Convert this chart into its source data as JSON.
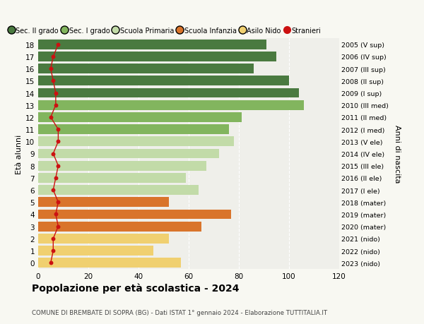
{
  "ages": [
    18,
    17,
    16,
    15,
    14,
    13,
    12,
    11,
    10,
    9,
    8,
    7,
    6,
    5,
    4,
    3,
    2,
    1,
    0
  ],
  "years": [
    "2005 (V sup)",
    "2006 (IV sup)",
    "2007 (III sup)",
    "2008 (II sup)",
    "2009 (I sup)",
    "2010 (III med)",
    "2011 (II med)",
    "2012 (I med)",
    "2013 (V ele)",
    "2014 (IV ele)",
    "2015 (III ele)",
    "2016 (II ele)",
    "2017 (I ele)",
    "2018 (mater)",
    "2019 (mater)",
    "2020 (mater)",
    "2021 (nido)",
    "2022 (nido)",
    "2023 (nido)"
  ],
  "values": [
    91,
    95,
    86,
    100,
    104,
    106,
    81,
    76,
    78,
    72,
    67,
    59,
    64,
    52,
    77,
    65,
    52,
    46,
    57
  ],
  "stranieri": [
    8,
    6,
    5,
    6,
    7,
    7,
    5,
    8,
    8,
    6,
    8,
    7,
    6,
    8,
    7,
    8,
    6,
    6,
    5
  ],
  "bar_colors": [
    "#4a7a40",
    "#4a7a40",
    "#4a7a40",
    "#4a7a40",
    "#4a7a40",
    "#82b55e",
    "#82b55e",
    "#82b55e",
    "#c2dba8",
    "#c2dba8",
    "#c2dba8",
    "#c2dba8",
    "#c2dba8",
    "#d9742b",
    "#d9742b",
    "#d9742b",
    "#f0d070",
    "#f0d070",
    "#f0d070"
  ],
  "legend_labels": [
    "Sec. II grado",
    "Sec. I grado",
    "Scuola Primaria",
    "Scuola Infanzia",
    "Asilo Nido",
    "Stranieri"
  ],
  "legend_colors": [
    "#4a7a40",
    "#82b55e",
    "#c2dba8",
    "#d9742b",
    "#f0d070",
    "#cc1111"
  ],
  "stranieri_color": "#cc1111",
  "title": "Popolazione per età scolastica - 2024",
  "subtitle": "COMUNE DI BREMBATE DI SOPRA (BG) - Dati ISTAT 1° gennaio 2024 - Elaborazione TUTTITALIA.IT",
  "ylabel_left": "Età alunni",
  "ylabel_right": "Anni di nascita",
  "xlim": [
    0,
    120
  ],
  "xticks": [
    0,
    20,
    40,
    60,
    80,
    100,
    120
  ],
  "bg_color": "#f8f8f2",
  "plot_bg_color": "#efefea",
  "bar_height": 0.8
}
